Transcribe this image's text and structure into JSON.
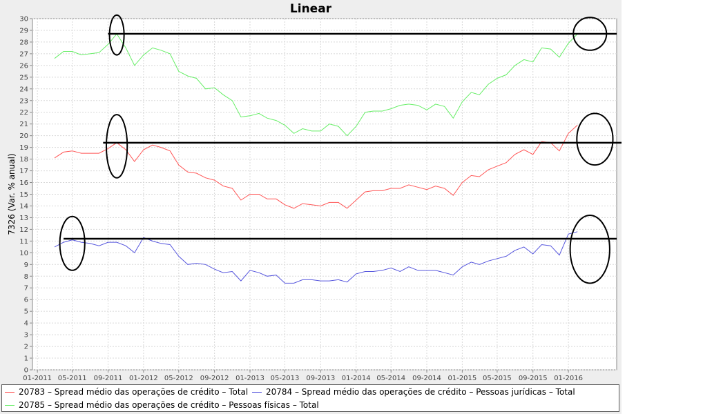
{
  "chart_data": {
    "type": "line",
    "title": "Linear",
    "ylabel": "7326 (Var. % anual)",
    "xlabel": "",
    "ylim": [
      0,
      30
    ],
    "xlim": [
      "2010-12-15",
      "2016-06-15"
    ],
    "yticks": [
      "0",
      "1",
      "2",
      "3",
      "4",
      "5",
      "6",
      "7",
      "8",
      "9",
      "10",
      "11",
      "12",
      "13",
      "14",
      "15",
      "16",
      "17",
      "18",
      "19",
      "20",
      "21",
      "22",
      "23",
      "24",
      "25",
      "26",
      "27",
      "28",
      "29",
      "30"
    ],
    "xticks": [
      {
        "label": "01-2011",
        "date": "2011-01-01"
      },
      {
        "label": "05-2011",
        "date": "2011-05-01"
      },
      {
        "label": "09-2011",
        "date": "2011-09-01"
      },
      {
        "label": "01-2012",
        "date": "2012-01-01"
      },
      {
        "label": "05-2012",
        "date": "2012-05-01"
      },
      {
        "label": "09-2012",
        "date": "2012-09-01"
      },
      {
        "label": "01-2013",
        "date": "2013-01-01"
      },
      {
        "label": "05-2013",
        "date": "2013-05-01"
      },
      {
        "label": "09-2013",
        "date": "2013-09-01"
      },
      {
        "label": "01-2014",
        "date": "2014-01-01"
      },
      {
        "label": "05-2014",
        "date": "2014-05-01"
      },
      {
        "label": "09-2014",
        "date": "2014-09-01"
      },
      {
        "label": "01-2015",
        "date": "2015-01-01"
      },
      {
        "label": "05-2015",
        "date": "2015-05-01"
      },
      {
        "label": "09-2015",
        "date": "2015-09-01"
      },
      {
        "label": "01-2016",
        "date": "2016-01-01"
      }
    ],
    "grid": true,
    "x": [
      "2011-03",
      "2011-04",
      "2011-05",
      "2011-06",
      "2011-07",
      "2011-08",
      "2011-09",
      "2011-10",
      "2011-11",
      "2011-12",
      "2012-01",
      "2012-02",
      "2012-03",
      "2012-04",
      "2012-05",
      "2012-06",
      "2012-07",
      "2012-08",
      "2012-09",
      "2012-10",
      "2012-11",
      "2012-12",
      "2013-01",
      "2013-02",
      "2013-03",
      "2013-04",
      "2013-05",
      "2013-06",
      "2013-07",
      "2013-08",
      "2013-09",
      "2013-10",
      "2013-11",
      "2013-12",
      "2014-01",
      "2014-02",
      "2014-03",
      "2014-04",
      "2014-05",
      "2014-06",
      "2014-07",
      "2014-08",
      "2014-09",
      "2014-10",
      "2014-11",
      "2014-12",
      "2015-01",
      "2015-02",
      "2015-03",
      "2015-04",
      "2015-05",
      "2015-06",
      "2015-07",
      "2015-08",
      "2015-09",
      "2015-10",
      "2015-11",
      "2015-12",
      "2016-01",
      "2016-02"
    ],
    "series": [
      {
        "name": "20783 – Spread médio das operações de crédito – Total",
        "color": "#ff5555",
        "values": [
          18.1,
          18.6,
          18.7,
          18.5,
          18.5,
          18.5,
          18.9,
          19.4,
          18.8,
          17.8,
          18.8,
          19.2,
          19.0,
          18.7,
          17.5,
          16.9,
          16.8,
          16.4,
          16.2,
          15.7,
          15.5,
          14.5,
          15.0,
          15.0,
          14.6,
          14.6,
          14.1,
          13.8,
          14.2,
          14.1,
          14.0,
          14.3,
          14.3,
          13.8,
          14.5,
          15.2,
          15.3,
          15.3,
          15.5,
          15.5,
          15.8,
          15.6,
          15.4,
          15.7,
          15.5,
          14.9,
          16.0,
          16.6,
          16.5,
          17.1,
          17.4,
          17.7,
          18.4,
          18.8,
          18.4,
          19.5,
          19.4,
          18.7,
          20.2,
          20.9
        ]
      },
      {
        "name": "20784 – Spread médio das operações de crédito – Pessoas jurídicas – Total",
        "color": "#5555dd",
        "values": [
          10.5,
          10.9,
          11.1,
          10.9,
          10.8,
          10.6,
          10.9,
          10.9,
          10.6,
          10.0,
          11.3,
          11.0,
          10.8,
          10.7,
          9.7,
          9.0,
          9.1,
          9.0,
          8.6,
          8.3,
          8.4,
          7.6,
          8.5,
          8.3,
          8.0,
          8.1,
          7.4,
          7.4,
          7.7,
          7.7,
          7.6,
          7.6,
          7.7,
          7.5,
          8.2,
          8.4,
          8.4,
          8.5,
          8.7,
          8.4,
          8.8,
          8.5,
          8.5,
          8.5,
          8.3,
          8.1,
          8.8,
          9.2,
          9.0,
          9.3,
          9.5,
          9.7,
          10.2,
          10.5,
          9.9,
          10.7,
          10.6,
          9.8,
          11.6,
          11.8
        ]
      },
      {
        "name": "20785 – Spread médio das operações de crédito – Pessoas físicas – Total",
        "color": "#66ee66",
        "values": [
          26.6,
          27.2,
          27.2,
          26.9,
          27.0,
          27.1,
          27.8,
          28.7,
          27.5,
          26.0,
          26.9,
          27.5,
          27.3,
          27.0,
          25.5,
          25.1,
          24.9,
          24.0,
          24.1,
          23.5,
          23.0,
          21.6,
          21.7,
          21.9,
          21.5,
          21.3,
          20.9,
          20.2,
          20.6,
          20.4,
          20.4,
          21.0,
          20.8,
          20.0,
          20.8,
          22.0,
          22.1,
          22.1,
          22.3,
          22.6,
          22.7,
          22.6,
          22.2,
          22.7,
          22.5,
          21.5,
          22.9,
          23.7,
          23.5,
          24.4,
          24.9,
          25.2,
          26.0,
          26.5,
          26.3,
          27.5,
          27.4,
          26.7,
          27.9,
          28.7
        ]
      }
    ]
  },
  "legend": {
    "items": [
      {
        "label": "20783 – Spread médio das operações de crédito – Total",
        "color": "#ff5555"
      },
      {
        "label": "20784 – Spread médio das operações de crédito – Pessoas jurídicas – Total",
        "color": "#5555dd"
      },
      {
        "label": "20785 – Spread médio das operações de crédito – Pessoas físicas – Total",
        "color": "#66ee66"
      }
    ]
  },
  "annotations": {
    "color": "#000000",
    "hlines": [
      {
        "y": 28.7,
        "from": "2011-09",
        "to": "2016-06-15"
      },
      {
        "y": 19.4,
        "from": "2011-08-15",
        "to": "2016-09-01"
      },
      {
        "y": 11.2,
        "from": "2011-04",
        "to": "2016-06-15"
      }
    ],
    "ellipses": [
      {
        "x": "2011-10-01",
        "y": 28.6,
        "rx_days": 25,
        "ry": 1.7
      },
      {
        "x": "2016-03-15",
        "y": 28.7,
        "rx_days": 57,
        "ry": 1.4
      },
      {
        "x": "2011-10-01",
        "y": 19.1,
        "rx_days": 36,
        "ry": 2.7
      },
      {
        "x": "2016-04-01",
        "y": 19.7,
        "rx_days": 62,
        "ry": 2.2
      },
      {
        "x": "2011-05-01",
        "y": 10.8,
        "rx_days": 43,
        "ry": 2.3
      },
      {
        "x": "2016-03-15",
        "y": 10.3,
        "rx_days": 68,
        "ry": 2.9
      }
    ]
  }
}
